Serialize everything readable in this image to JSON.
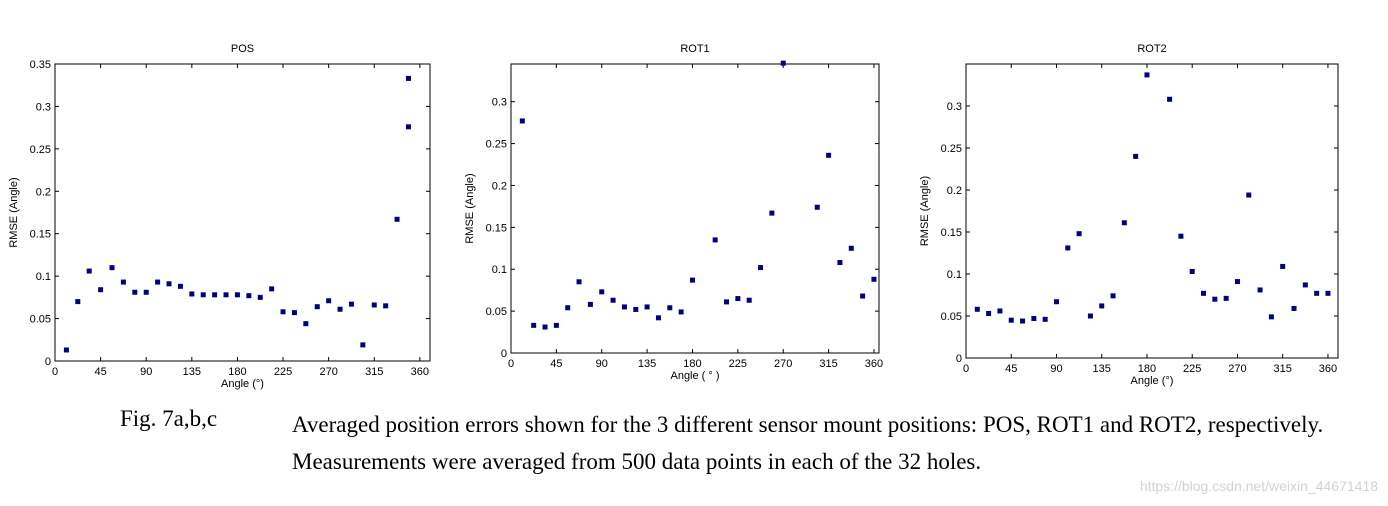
{
  "chart_data": [
    {
      "type": "scatter",
      "title": "POS",
      "xlabel": "Angle (°)",
      "ylabel": "RMSE (Angle)",
      "xlim": [
        0,
        370
      ],
      "ylim": [
        0,
        0.35
      ],
      "xticks": [
        0,
        45,
        90,
        135,
        180,
        225,
        270,
        315,
        360
      ],
      "yticks": [
        0,
        0.05,
        0.1,
        0.15,
        0.2,
        0.25,
        0.3,
        0.35
      ],
      "ytick_labels": [
        "0",
        "0.05",
        "0.1",
        "0.15",
        "0.2",
        "0.25",
        "0.3",
        "0.35"
      ],
      "grid": false,
      "color": "#000080",
      "x": [
        11.25,
        22.5,
        33.75,
        45,
        56.25,
        67.5,
        78.75,
        90,
        101.25,
        112.5,
        123.75,
        135,
        146.25,
        157.5,
        168.75,
        180,
        191.25,
        202.5,
        213.75,
        225,
        236.25,
        247.5,
        258.75,
        270,
        281.25,
        292.5,
        303.75,
        315,
        326.25,
        337.5,
        348.75,
        348.75
      ],
      "y": [
        0.013,
        0.07,
        0.106,
        0.084,
        0.11,
        0.093,
        0.081,
        0.081,
        0.093,
        0.091,
        0.088,
        0.079,
        0.078,
        0.078,
        0.078,
        0.078,
        0.077,
        0.075,
        0.085,
        0.058,
        0.057,
        0.044,
        0.064,
        0.071,
        0.061,
        0.067,
        0.019,
        0.066,
        0.065,
        0.167,
        0.333,
        0.276
      ]
    },
    {
      "type": "scatter",
      "title": "ROT1",
      "xlabel": "Angle ( ° )",
      "ylabel": "RMSE (Angle)",
      "xlim": [
        0,
        365
      ],
      "ylim": [
        0,
        0.345
      ],
      "xticks": [
        0,
        45,
        90,
        135,
        180,
        225,
        270,
        315,
        360
      ],
      "yticks": [
        0,
        0.05,
        0.1,
        0.15,
        0.2,
        0.25,
        0.3
      ],
      "ytick_labels": [
        "0",
        "0.05",
        "0.1",
        "0.15",
        "0.2",
        "0.25",
        "0.3"
      ],
      "grid": false,
      "color": "#000080",
      "x": [
        11.25,
        22.5,
        33.75,
        45,
        56.25,
        67.5,
        78.75,
        90,
        101.25,
        112.5,
        123.75,
        135,
        146.25,
        157.5,
        168.75,
        180,
        202.5,
        213.75,
        225,
        236.25,
        247.5,
        258.75,
        270,
        303.75,
        315,
        326.25,
        337.5,
        348.75,
        360
      ],
      "y": [
        0.277,
        0.033,
        0.031,
        0.033,
        0.054,
        0.085,
        0.058,
        0.073,
        0.063,
        0.055,
        0.052,
        0.055,
        0.042,
        0.054,
        0.049,
        0.087,
        0.135,
        0.061,
        0.065,
        0.063,
        0.102,
        0.167,
        0.346,
        0.174,
        0.236,
        0.108,
        0.125,
        0.068,
        0.088
      ]
    },
    {
      "type": "scatter",
      "title": "ROT2",
      "xlabel": "Angle (°)",
      "ylabel": "RMSE (Angle)",
      "xlim": [
        0,
        370
      ],
      "ylim": [
        0,
        0.35
      ],
      "xticks": [
        0,
        45,
        90,
        135,
        180,
        225,
        270,
        315,
        360
      ],
      "yticks": [
        0,
        0.05,
        0.1,
        0.15,
        0.2,
        0.25,
        0.3
      ],
      "ytick_labels": [
        "0",
        "0.05",
        "0.1",
        "0.15",
        "0.2",
        "0.25",
        "0.3"
      ],
      "grid": false,
      "color": "#000080",
      "x": [
        11.25,
        22.5,
        33.75,
        45,
        56.25,
        67.5,
        78.75,
        90,
        101.25,
        112.5,
        123.75,
        135,
        146.25,
        157.5,
        168.75,
        180,
        202.5,
        213.75,
        225,
        236.25,
        247.5,
        258.75,
        270,
        281.25,
        292.5,
        303.75,
        315,
        326.25,
        337.5,
        348.75,
        360
      ],
      "y": [
        0.058,
        0.053,
        0.056,
        0.045,
        0.044,
        0.047,
        0.046,
        0.067,
        0.131,
        0.148,
        0.05,
        0.062,
        0.074,
        0.161,
        0.24,
        0.337,
        0.308,
        0.145,
        0.103,
        0.077,
        0.07,
        0.071,
        0.091,
        0.194,
        0.081,
        0.049,
        0.109,
        0.059,
        0.087,
        0.077,
        0.077
      ]
    }
  ],
  "caption": {
    "label": "Fig. 7a,b,c",
    "text": "Averaged position errors shown for the 3 different sensor mount positions: POS, ROT1 and ROT2, respectively. Measurements were averaged from 500 data points in each of the 32 holes."
  },
  "watermark": "https://blog.csdn.net/weixin_44671418"
}
